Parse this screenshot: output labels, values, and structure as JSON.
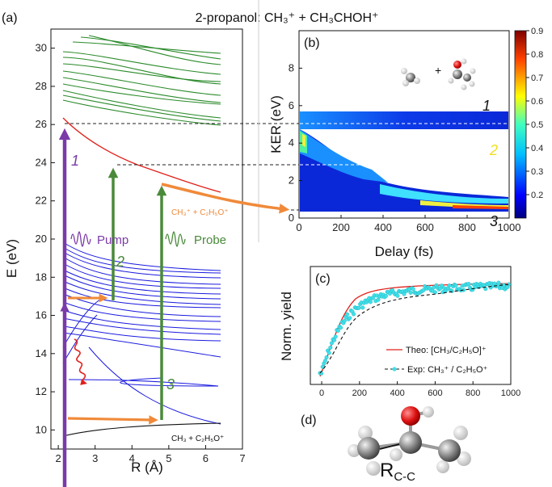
{
  "title": "2-propanol: CH₃⁺ + CH₃CHOH⁺",
  "panel_a": {
    "label": "(a)",
    "xlabel": "R (Å)",
    "ylabel": "E (eV)",
    "x_ticks": [
      "2",
      "3",
      "4",
      "5",
      "6",
      "7"
    ],
    "y_ticks": [
      "10",
      "12",
      "14",
      "16",
      "18",
      "20",
      "22",
      "24",
      "26",
      "28",
      "30"
    ],
    "xlim": [
      1.8,
      7
    ],
    "ylim": [
      9,
      31
    ],
    "pump_label": "Pump",
    "probe_label": "Probe",
    "arrow_labels": [
      "1",
      "2",
      "3"
    ],
    "channel_upper": "CH₃⁺ + C₂H₅O⁺",
    "channel_lower": "CH₃ + C₂H₅O⁺",
    "colors": {
      "pump": "#7a3aa8",
      "probe": "#4a8a3a",
      "orange": "#f08a3a",
      "red": "#e0201a",
      "green": "#2a8a2a",
      "blue": "#1a1adf"
    }
  },
  "panel_b": {
    "label": "(b)",
    "xlabel": "Delay (fs)",
    "ylabel": "KER (eV)",
    "x_ticks": [
      "0",
      "200",
      "400",
      "600",
      "800",
      "1000"
    ],
    "y_ticks": [
      "0",
      "2",
      "4",
      "6",
      "8"
    ],
    "colorbar_ticks": [
      "0.9",
      "0.8",
      "0.7",
      "0.6",
      "0.5",
      "0.4",
      "0.3",
      "0.2"
    ],
    "band_labels": [
      "1",
      "2",
      "3"
    ]
  },
  "panel_c": {
    "label": "(c)",
    "ylabel": "Norm. yield",
    "x_ticks": [
      "0",
      "200",
      "400",
      "600",
      "800",
      "1000"
    ],
    "legend_theo": "Theo: [CH₃/C₂H₅O]⁺",
    "legend_exp": "Exp: CH₃⁺ / C₂H₅O⁺"
  },
  "panel_d": {
    "label": "(d)",
    "bond_label": "R",
    "bond_subscript": "C-C"
  }
}
